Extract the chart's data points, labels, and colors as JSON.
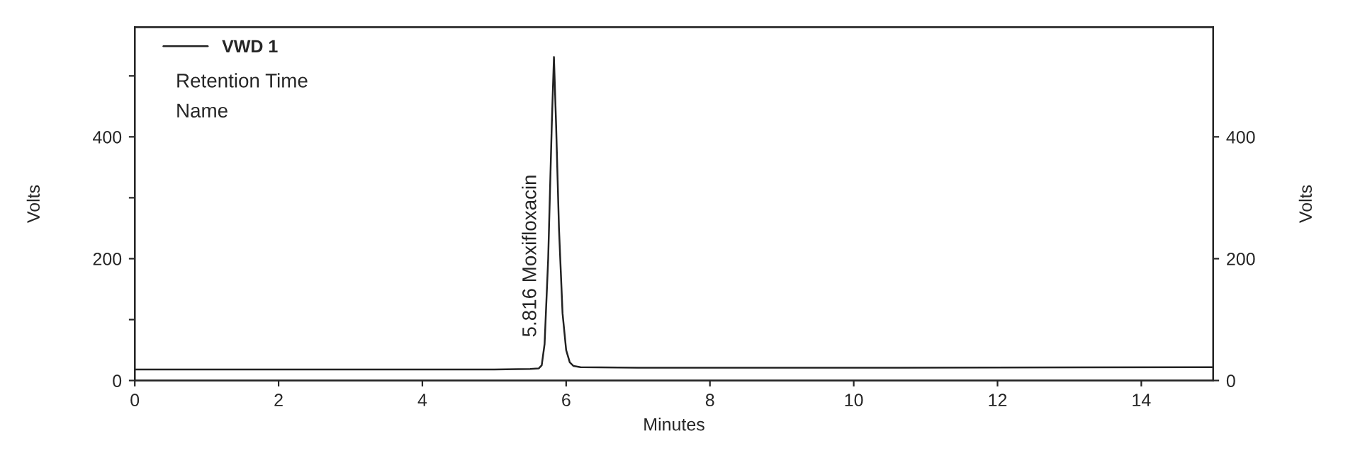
{
  "chart_data": {
    "type": "line",
    "xlabel": "Minutes",
    "ylabel": "Volts",
    "y2label": "Volts",
    "series": [
      {
        "name": "VWD 1",
        "color": "#222222",
        "x": [
          0,
          5.0,
          5.5,
          5.62,
          5.66,
          5.7,
          5.75,
          5.8,
          5.83,
          5.86,
          5.9,
          5.95,
          6.0,
          6.05,
          6.1,
          6.2,
          7,
          10,
          15
        ],
        "values": [
          18,
          18,
          19,
          20,
          25,
          60,
          200,
          420,
          531,
          420,
          250,
          110,
          50,
          30,
          24,
          22,
          21,
          21,
          22
        ]
      }
    ],
    "xlim": [
      0,
      15
    ],
    "xticks": [
      0,
      2,
      4,
      6,
      8,
      10,
      12,
      14
    ],
    "ylim": [
      0,
      580
    ],
    "yticks": [
      0,
      {
        "value": 100,
        "label": null
      },
      200,
      {
        "value": 300,
        "label": null
      },
      400,
      {
        "value": 500,
        "label": null
      }
    ],
    "y2lim": [
      0,
      580
    ],
    "y2ticks": [
      0,
      200,
      400
    ],
    "annotations": [
      "5.816 Moxifloxacin",
      "Retention Time",
      "Name"
    ],
    "legend": "top left",
    "grid": false,
    "marker": "none",
    "line_style": "solid"
  }
}
